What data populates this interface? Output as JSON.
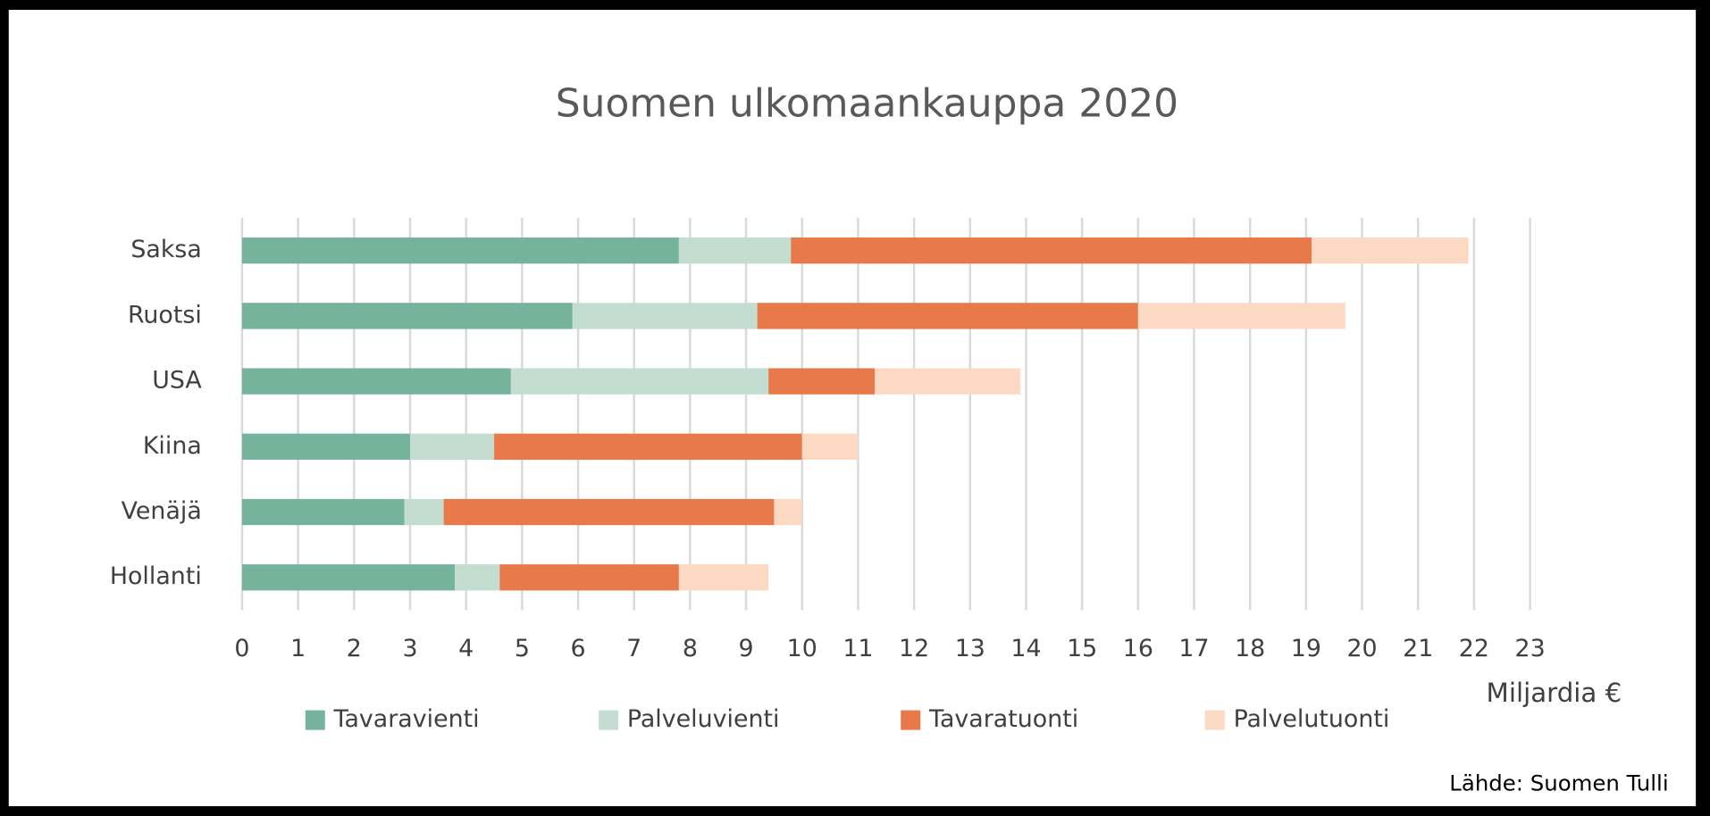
{
  "chart_data": {
    "type": "bar",
    "orientation": "horizontal",
    "stacked": true,
    "title": "Suomen ulkomaankauppa 2020",
    "x_label": "Miljardia €",
    "source": "Lähde: Suomen Tulli",
    "categories": [
      "Saksa",
      "Ruotsi",
      "USA",
      "Kiina",
      "Venäjä",
      "Hollanti"
    ],
    "series": [
      {
        "name": "Tavaravienti",
        "color": "#76b39d",
        "values": [
          7.8,
          5.9,
          4.8,
          3.0,
          2.9,
          3.8
        ]
      },
      {
        "name": "Palveluvienti",
        "color": "#c3ddd0",
        "values": [
          2.0,
          3.3,
          4.6,
          1.5,
          0.7,
          0.8
        ]
      },
      {
        "name": "Tavaratuonti",
        "color": "#e8794b",
        "values": [
          9.3,
          6.8,
          1.9,
          5.5,
          5.9,
          3.2
        ]
      },
      {
        "name": "Palvelutuonti",
        "color": "#fcd9c3",
        "values": [
          2.8,
          3.7,
          2.6,
          1.0,
          0.5,
          1.6
        ]
      }
    ],
    "xlim": [
      0,
      23
    ],
    "xticks": [
      0,
      1,
      2,
      3,
      4,
      5,
      6,
      7,
      8,
      9,
      10,
      11,
      12,
      13,
      14,
      15,
      16,
      17,
      18,
      19,
      20,
      21,
      22,
      23
    ],
    "grid": true,
    "legend": "bottom"
  }
}
